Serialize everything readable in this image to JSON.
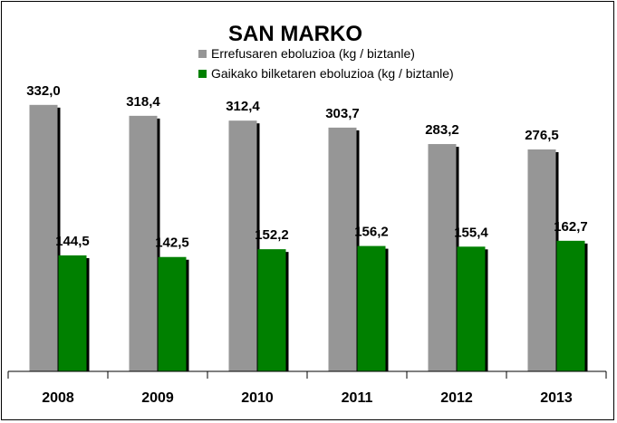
{
  "chart_data": {
    "type": "bar",
    "title": "SAN MARKO",
    "categories": [
      "2008",
      "2009",
      "2010",
      "2011",
      "2012",
      "2013"
    ],
    "series": [
      {
        "name": "Errefusaren eboluzioa (kg / biztanle)",
        "color": "#969696",
        "values": [
          332.0,
          318.4,
          312.4,
          303.7,
          283.2,
          276.5
        ],
        "labels": [
          "332,0",
          "318,4",
          "312,4",
          "303,7",
          "283,2",
          "276,5"
        ]
      },
      {
        "name": "Gaikako bilketaren eboluzioa (kg / biztanle)",
        "color": "#008000",
        "values": [
          144.5,
          142.5,
          152.2,
          156.2,
          155.4,
          162.7
        ],
        "labels": [
          "144,5",
          "142,5",
          "152,2",
          "156,2",
          "155,4",
          "162,7"
        ]
      }
    ],
    "ylim": [
      0,
      360
    ],
    "grid": false,
    "legend_position": "top-center"
  }
}
